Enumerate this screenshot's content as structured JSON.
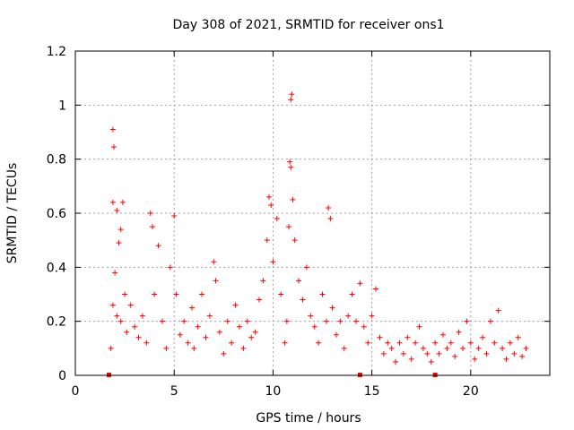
{
  "chart_data": {
    "type": "scatter",
    "title": "Day 308 of 2021, SRMTID for receiver ons1",
    "xlabel": "GPS time / hours",
    "ylabel": "SRMTID / TECUs",
    "xlim": [
      0,
      24
    ],
    "ylim": [
      0,
      1.2
    ],
    "x_ticks": [
      0,
      5,
      10,
      15,
      20
    ],
    "y_ticks": [
      0,
      0.2,
      0.4,
      0.6,
      0.8,
      1,
      1.2
    ],
    "x_tick_labels": [
      "0",
      "5",
      "10",
      "15",
      "20"
    ],
    "y_tick_labels": [
      "0",
      "0.2",
      "0.4",
      "0.6",
      "0.8",
      "1",
      "1.2"
    ],
    "grid": true,
    "marker": "+",
    "color": "#ff0000",
    "series": [
      {
        "name": "SRMTID",
        "points": [
          [
            1.9,
            0.91
          ],
          [
            1.95,
            0.845
          ],
          [
            1.8,
            0.1
          ],
          [
            1.9,
            0.64
          ],
          [
            2.1,
            0.61
          ],
          [
            2.4,
            0.64
          ],
          [
            2.3,
            0.54
          ],
          [
            2.2,
            0.49
          ],
          [
            2.0,
            0.38
          ],
          [
            1.9,
            0.26
          ],
          [
            2.1,
            0.22
          ],
          [
            2.5,
            0.3
          ],
          [
            2.3,
            0.2
          ],
          [
            2.6,
            0.16
          ],
          [
            2.8,
            0.26
          ],
          [
            3.0,
            0.18
          ],
          [
            3.2,
            0.14
          ],
          [
            3.4,
            0.22
          ],
          [
            3.6,
            0.12
          ],
          [
            3.8,
            0.6
          ],
          [
            3.9,
            0.55
          ],
          [
            4.0,
            0.3
          ],
          [
            4.2,
            0.48
          ],
          [
            4.4,
            0.2
          ],
          [
            4.6,
            0.1
          ],
          [
            4.8,
            0.4
          ],
          [
            5.0,
            0.59
          ],
          [
            5.1,
            0.3
          ],
          [
            5.3,
            0.15
          ],
          [
            5.5,
            0.2
          ],
          [
            5.7,
            0.12
          ],
          [
            5.9,
            0.25
          ],
          [
            6.0,
            0.1
          ],
          [
            6.2,
            0.18
          ],
          [
            6.4,
            0.3
          ],
          [
            6.6,
            0.14
          ],
          [
            6.8,
            0.22
          ],
          [
            7.0,
            0.42
          ],
          [
            7.1,
            0.35
          ],
          [
            7.3,
            0.16
          ],
          [
            7.5,
            0.08
          ],
          [
            7.7,
            0.2
          ],
          [
            7.9,
            0.12
          ],
          [
            8.1,
            0.26
          ],
          [
            8.3,
            0.18
          ],
          [
            8.5,
            0.1
          ],
          [
            8.7,
            0.2
          ],
          [
            8.9,
            0.14
          ],
          [
            9.1,
            0.16
          ],
          [
            9.3,
            0.28
          ],
          [
            9.5,
            0.35
          ],
          [
            9.7,
            0.5
          ],
          [
            9.8,
            0.66
          ],
          [
            9.9,
            0.63
          ],
          [
            10.0,
            0.42
          ],
          [
            10.2,
            0.58
          ],
          [
            10.4,
            0.3
          ],
          [
            10.6,
            0.12
          ],
          [
            10.7,
            0.2
          ],
          [
            10.8,
            0.55
          ],
          [
            10.9,
            1.02
          ],
          [
            10.95,
            1.04
          ],
          [
            10.85,
            0.79
          ],
          [
            10.9,
            0.77
          ],
          [
            11.0,
            0.65
          ],
          [
            11.1,
            0.5
          ],
          [
            11.3,
            0.35
          ],
          [
            11.5,
            0.28
          ],
          [
            11.7,
            0.4
          ],
          [
            11.9,
            0.22
          ],
          [
            12.1,
            0.18
          ],
          [
            12.3,
            0.12
          ],
          [
            12.5,
            0.3
          ],
          [
            12.7,
            0.2
          ],
          [
            12.8,
            0.62
          ],
          [
            12.9,
            0.58
          ],
          [
            13.0,
            0.25
          ],
          [
            13.2,
            0.15
          ],
          [
            13.4,
            0.2
          ],
          [
            13.6,
            0.1
          ],
          [
            13.8,
            0.22
          ],
          [
            14.0,
            0.3
          ],
          [
            14.2,
            0.2
          ],
          [
            14.4,
            0.34
          ],
          [
            14.6,
            0.18
          ],
          [
            14.8,
            0.12
          ],
          [
            15.0,
            0.22
          ],
          [
            15.2,
            0.32
          ],
          [
            15.4,
            0.14
          ],
          [
            15.6,
            0.08
          ],
          [
            15.8,
            0.12
          ],
          [
            16.0,
            0.1
          ],
          [
            16.2,
            0.05
          ],
          [
            16.4,
            0.12
          ],
          [
            16.6,
            0.08
          ],
          [
            16.8,
            0.14
          ],
          [
            17.0,
            0.06
          ],
          [
            17.2,
            0.12
          ],
          [
            17.4,
            0.18
          ],
          [
            17.6,
            0.1
          ],
          [
            17.8,
            0.08
          ],
          [
            18.0,
            0.05
          ],
          [
            18.2,
            0.12
          ],
          [
            18.4,
            0.08
          ],
          [
            18.6,
            0.15
          ],
          [
            18.8,
            0.1
          ],
          [
            19.0,
            0.12
          ],
          [
            19.2,
            0.07
          ],
          [
            19.4,
            0.16
          ],
          [
            19.6,
            0.1
          ],
          [
            19.8,
            0.2
          ],
          [
            20.0,
            0.12
          ],
          [
            20.2,
            0.06
          ],
          [
            20.4,
            0.1
          ],
          [
            20.6,
            0.14
          ],
          [
            20.8,
            0.08
          ],
          [
            21.0,
            0.2
          ],
          [
            21.2,
            0.12
          ],
          [
            21.4,
            0.24
          ],
          [
            21.6,
            0.1
          ],
          [
            21.8,
            0.06
          ],
          [
            22.0,
            0.12
          ],
          [
            22.2,
            0.08
          ],
          [
            22.4,
            0.14
          ],
          [
            22.6,
            0.07
          ],
          [
            22.8,
            0.1
          ]
        ]
      }
    ],
    "zero_markers_x": [
      1.7,
      14.4,
      18.2
    ]
  }
}
